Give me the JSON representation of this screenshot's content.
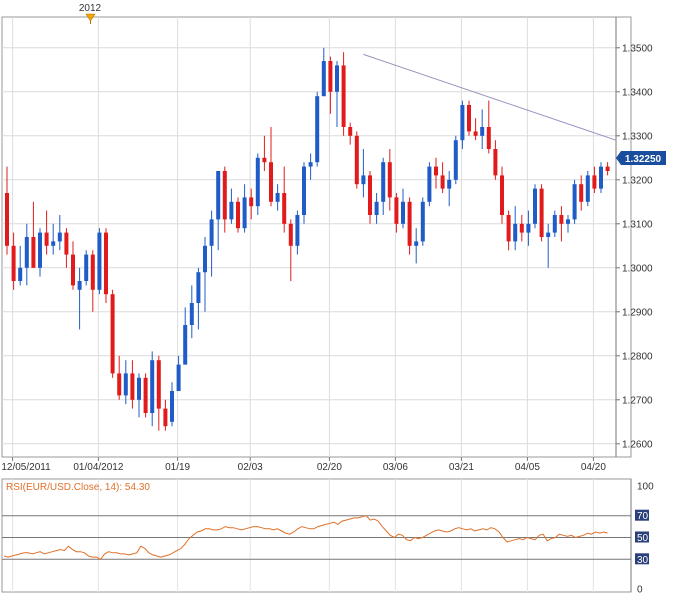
{
  "chart_data": [
    {
      "type": "candlestick",
      "title": "",
      "event_marker": {
        "label": "2012",
        "date": "01/02"
      },
      "x_tick_labels": [
        "12/05/2011",
        "01/04/2012",
        "01/19",
        "02/03",
        "02/20",
        "03/06",
        "03/21",
        "04/05",
        "04/20"
      ],
      "y_ticks": [
        "1.3500",
        "1.3400",
        "1.3300",
        "1.3200",
        "1.3100",
        "1.3000",
        "1.2900",
        "1.2800",
        "1.2700",
        "1.2600"
      ],
      "ylim": [
        1.257,
        1.357
      ],
      "last_price": "1.32250",
      "trendline": {
        "from": [
          54,
          1.3485
        ],
        "to": [
          96,
          1.329
        ]
      },
      "candles": [
        [
          1.317,
          1.323,
          1.303,
          1.305
        ],
        [
          1.305,
          1.308,
          1.295,
          1.297
        ],
        [
          1.297,
          1.305,
          1.296,
          1.3
        ],
        [
          1.3,
          1.31,
          1.296,
          1.307
        ],
        [
          1.307,
          1.315,
          1.3,
          1.3
        ],
        [
          1.3,
          1.309,
          1.298,
          1.308
        ],
        [
          1.308,
          1.313,
          1.303,
          1.305
        ],
        [
          1.305,
          1.31,
          1.303,
          1.306
        ],
        [
          1.306,
          1.312,
          1.304,
          1.308
        ],
        [
          1.308,
          1.309,
          1.3,
          1.303
        ],
        [
          1.303,
          1.306,
          1.295,
          1.296
        ],
        [
          1.295,
          1.3,
          1.286,
          1.297
        ],
        [
          1.297,
          1.304,
          1.296,
          1.303
        ],
        [
          1.303,
          1.304,
          1.29,
          1.295
        ],
        [
          1.295,
          1.309,
          1.294,
          1.308
        ],
        [
          1.308,
          1.309,
          1.292,
          1.294
        ],
        [
          1.294,
          1.295,
          1.275,
          1.276
        ],
        [
          1.276,
          1.28,
          1.27,
          1.271
        ],
        [
          1.271,
          1.279,
          1.269,
          1.276
        ],
        [
          1.276,
          1.279,
          1.268,
          1.27
        ],
        [
          1.27,
          1.276,
          1.266,
          1.275
        ],
        [
          1.275,
          1.276,
          1.266,
          1.267
        ],
        [
          1.267,
          1.281,
          1.264,
          1.279
        ],
        [
          1.279,
          1.28,
          1.263,
          1.268
        ],
        [
          1.268,
          1.27,
          1.263,
          1.264
        ],
        [
          1.265,
          1.274,
          1.264,
          1.272
        ],
        [
          1.272,
          1.28,
          1.272,
          1.278
        ],
        [
          1.278,
          1.291,
          1.278,
          1.287
        ],
        [
          1.287,
          1.296,
          1.284,
          1.292
        ],
        [
          1.292,
          1.3,
          1.286,
          1.299
        ],
        [
          1.299,
          1.307,
          1.29,
          1.305
        ],
        [
          1.305,
          1.313,
          1.298,
          1.311
        ],
        [
          1.311,
          1.322,
          1.304,
          1.322
        ],
        [
          1.322,
          1.323,
          1.308,
          1.311
        ],
        [
          1.311,
          1.318,
          1.31,
          1.315
        ],
        [
          1.315,
          1.316,
          1.308,
          1.309
        ],
        [
          1.309,
          1.319,
          1.308,
          1.316
        ],
        [
          1.316,
          1.318,
          1.311,
          1.314
        ],
        [
          1.314,
          1.326,
          1.312,
          1.325
        ],
        [
          1.325,
          1.33,
          1.322,
          1.324
        ],
        [
          1.324,
          1.332,
          1.314,
          1.315
        ],
        [
          1.315,
          1.319,
          1.313,
          1.317
        ],
        [
          1.317,
          1.323,
          1.308,
          1.31
        ],
        [
          1.31,
          1.311,
          1.297,
          1.305
        ],
        [
          1.305,
          1.313,
          1.303,
          1.312
        ],
        [
          1.312,
          1.324,
          1.31,
          1.323
        ],
        [
          1.323,
          1.326,
          1.32,
          1.324
        ],
        [
          1.324,
          1.34,
          1.323,
          1.339
        ],
        [
          1.339,
          1.35,
          1.339,
          1.347
        ],
        [
          1.347,
          1.348,
          1.335,
          1.34
        ],
        [
          1.34,
          1.347,
          1.332,
          1.346
        ],
        [
          1.346,
          1.349,
          1.33,
          1.332
        ],
        [
          1.332,
          1.333,
          1.328,
          1.33
        ],
        [
          1.33,
          1.331,
          1.318,
          1.319
        ],
        [
          1.319,
          1.327,
          1.316,
          1.321
        ],
        [
          1.321,
          1.322,
          1.31,
          1.312
        ],
        [
          1.312,
          1.317,
          1.31,
          1.315
        ],
        [
          1.315,
          1.325,
          1.312,
          1.324
        ],
        [
          1.324,
          1.327,
          1.313,
          1.316
        ],
        [
          1.316,
          1.317,
          1.308,
          1.31
        ],
        [
          1.31,
          1.318,
          1.309,
          1.315
        ],
        [
          1.315,
          1.316,
          1.303,
          1.305
        ],
        [
          1.305,
          1.309,
          1.301,
          1.306
        ],
        [
          1.306,
          1.316,
          1.305,
          1.315
        ],
        [
          1.315,
          1.324,
          1.314,
          1.323
        ],
        [
          1.323,
          1.325,
          1.318,
          1.321
        ],
        [
          1.321,
          1.324,
          1.317,
          1.318
        ],
        [
          1.318,
          1.322,
          1.314,
          1.32
        ],
        [
          1.32,
          1.33,
          1.319,
          1.329
        ],
        [
          1.329,
          1.338,
          1.327,
          1.337
        ],
        [
          1.337,
          1.338,
          1.33,
          1.331
        ],
        [
          1.331,
          1.334,
          1.329,
          1.33
        ],
        [
          1.33,
          1.336,
          1.327,
          1.332
        ],
        [
          1.332,
          1.338,
          1.326,
          1.327
        ],
        [
          1.327,
          1.329,
          1.32,
          1.321
        ],
        [
          1.321,
          1.323,
          1.31,
          1.312
        ],
        [
          1.312,
          1.313,
          1.304,
          1.306
        ],
        [
          1.306,
          1.314,
          1.304,
          1.31
        ],
        [
          1.31,
          1.312,
          1.306,
          1.308
        ],
        [
          1.308,
          1.313,
          1.305,
          1.31
        ],
        [
          1.31,
          1.319,
          1.309,
          1.318
        ],
        [
          1.318,
          1.319,
          1.306,
          1.307
        ],
        [
          1.307,
          1.31,
          1.3,
          1.308
        ],
        [
          1.308,
          1.313,
          1.307,
          1.312
        ],
        [
          1.312,
          1.314,
          1.306,
          1.31
        ],
        [
          1.31,
          1.312,
          1.308,
          1.311
        ],
        [
          1.311,
          1.32,
          1.31,
          1.319
        ],
        [
          1.319,
          1.321,
          1.313,
          1.315
        ],
        [
          1.315,
          1.322,
          1.314,
          1.321
        ],
        [
          1.321,
          1.323,
          1.317,
          1.318
        ],
        [
          1.318,
          1.324,
          1.317,
          1.323
        ],
        [
          1.323,
          1.324,
          1.321,
          1.322
        ]
      ]
    },
    {
      "type": "line",
      "legend_label": "RSI(EUR/USD.Close, 14): 54.30",
      "y_ticks": [
        "100",
        "70",
        "50",
        "30",
        "0"
      ],
      "ylim": [
        0,
        100
      ],
      "reference_levels": [
        70,
        50,
        30
      ],
      "values": [
        33,
        32,
        33,
        34,
        35,
        36,
        36,
        35,
        36,
        37,
        35,
        36,
        37,
        38,
        39,
        38,
        42,
        39,
        37,
        37,
        36,
        33,
        32,
        32,
        30,
        35,
        37,
        36,
        36,
        35,
        35,
        34,
        35,
        36,
        42,
        40,
        36,
        34,
        33,
        32,
        33,
        34,
        36,
        38,
        40,
        44,
        49,
        52,
        55,
        56,
        58,
        58,
        57,
        57,
        58,
        60,
        59,
        59,
        58,
        57,
        58,
        59,
        60,
        60,
        59,
        58,
        58,
        57,
        58,
        56,
        54,
        53,
        55,
        58,
        60,
        59,
        58,
        58,
        60,
        61,
        62,
        63,
        64,
        62,
        65,
        66,
        67,
        68,
        68,
        69,
        70,
        66,
        67,
        65,
        60,
        56,
        52,
        50,
        53,
        52,
        48,
        47,
        50,
        49,
        50,
        52,
        54,
        56,
        57,
        56,
        55,
        56,
        58,
        59,
        58,
        57,
        58,
        56,
        57,
        58,
        57,
        59,
        58,
        55,
        50,
        46,
        47,
        48,
        49,
        48,
        50,
        49,
        48,
        52,
        53,
        47,
        49,
        50,
        53,
        52,
        51,
        52,
        50,
        51,
        52,
        54,
        53,
        55,
        54,
        55,
        54
      ]
    }
  ]
}
